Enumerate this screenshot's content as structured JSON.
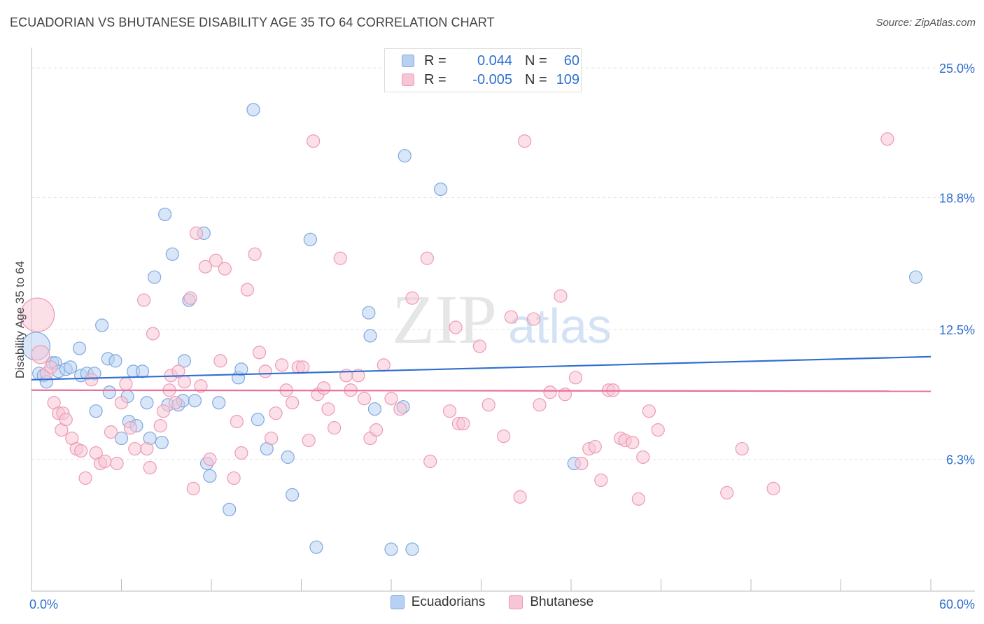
{
  "title": "ECUADORIAN VS BHUTANESE DISABILITY AGE 35 TO 64 CORRELATION CHART",
  "source": "Source: ZipAtlas.com",
  "watermark": {
    "zip": "ZIP",
    "atlas": "atlas"
  },
  "legend": {
    "rows": [
      {
        "r_label": "R =",
        "r_value": "0.044",
        "n_label": "N =",
        "n_value": "60"
      },
      {
        "r_label": "R =",
        "r_value": "-0.005",
        "n_label": "N =",
        "n_value": "109"
      }
    ]
  },
  "colors": {
    "ecuadorians_fill": "#b8d1f3",
    "ecuadorians_stroke": "#7fa8e0",
    "ecuadorians_line": "#2f6fcf",
    "bhutanese_fill": "#f7c6d5",
    "bhutanese_stroke": "#ee9ab5",
    "bhutanese_line": "#e8709a",
    "tick_label": "#2f6fcf"
  },
  "chart_data": {
    "type": "scatter",
    "title": "ECUADORIAN VS BHUTANESE DISABILITY AGE 35 TO 64 CORRELATION CHART",
    "xlabel": "",
    "ylabel": "Disability Age 35 to 64",
    "xlim": [
      0,
      60
    ],
    "ylim": [
      0,
      25
    ],
    "x_tick_labels": [
      "0.0%",
      "60.0%"
    ],
    "y_ticks": [
      6.3,
      12.5,
      18.8,
      25.0
    ],
    "y_tick_labels": [
      "6.3%",
      "12.5%",
      "18.8%",
      "25.0%"
    ],
    "grid": true,
    "legend_position": "top-center",
    "series": [
      {
        "name": "Ecuadorians",
        "trend": {
          "x": [
            0,
            60
          ],
          "y": [
            10.1,
            11.2
          ]
        },
        "points": [
          [
            0.3,
            11.7
          ],
          [
            0.5,
            10.4
          ],
          [
            0.8,
            10.3
          ],
          [
            1.0,
            10.0
          ],
          [
            1.4,
            10.9
          ],
          [
            1.6,
            10.9
          ],
          [
            1.8,
            10.5
          ],
          [
            2.3,
            10.6
          ],
          [
            2.6,
            10.7
          ],
          [
            3.2,
            11.6
          ],
          [
            3.3,
            10.3
          ],
          [
            3.7,
            10.4
          ],
          [
            4.2,
            10.4
          ],
          [
            4.3,
            8.6
          ],
          [
            4.7,
            12.7
          ],
          [
            5.1,
            11.1
          ],
          [
            5.2,
            9.5
          ],
          [
            5.6,
            11.0
          ],
          [
            6.0,
            7.3
          ],
          [
            6.4,
            9.3
          ],
          [
            6.5,
            8.1
          ],
          [
            6.8,
            10.5
          ],
          [
            7.0,
            7.9
          ],
          [
            7.4,
            10.5
          ],
          [
            7.7,
            9.0
          ],
          [
            7.9,
            7.3
          ],
          [
            8.2,
            15.0
          ],
          [
            8.7,
            7.1
          ],
          [
            8.9,
            18.0
          ],
          [
            9.1,
            8.9
          ],
          [
            9.4,
            16.1
          ],
          [
            9.8,
            8.9
          ],
          [
            10.1,
            9.1
          ],
          [
            10.2,
            11.0
          ],
          [
            10.5,
            13.9
          ],
          [
            10.9,
            9.1
          ],
          [
            11.5,
            17.1
          ],
          [
            11.7,
            6.1
          ],
          [
            11.9,
            5.5
          ],
          [
            12.5,
            9.0
          ],
          [
            13.2,
            3.9
          ],
          [
            13.8,
            10.2
          ],
          [
            14.0,
            10.6
          ],
          [
            14.8,
            23.0
          ],
          [
            15.1,
            8.2
          ],
          [
            15.7,
            6.8
          ],
          [
            17.1,
            6.4
          ],
          [
            17.4,
            4.6
          ],
          [
            18.6,
            16.8
          ],
          [
            19.0,
            2.1
          ],
          [
            22.5,
            13.3
          ],
          [
            22.6,
            12.2
          ],
          [
            22.9,
            8.7
          ],
          [
            24.0,
            2.0
          ],
          [
            24.8,
            8.8
          ],
          [
            24.9,
            20.8
          ],
          [
            25.4,
            2.0
          ],
          [
            27.3,
            19.2
          ],
          [
            36.2,
            6.1
          ],
          [
            59.0,
            15.0
          ]
        ]
      },
      {
        "name": "Bhutanese",
        "trend": {
          "x": [
            0,
            60
          ],
          "y": [
            9.6,
            9.55
          ]
        },
        "points": [
          [
            0.4,
            13.2
          ],
          [
            0.6,
            11.3
          ],
          [
            1.0,
            10.4
          ],
          [
            1.3,
            10.7
          ],
          [
            1.5,
            9.0
          ],
          [
            1.8,
            8.5
          ],
          [
            2.0,
            7.7
          ],
          [
            2.1,
            8.5
          ],
          [
            2.3,
            8.2
          ],
          [
            2.7,
            7.3
          ],
          [
            3.0,
            6.8
          ],
          [
            3.3,
            6.7
          ],
          [
            3.6,
            5.4
          ],
          [
            4.0,
            10.1
          ],
          [
            4.3,
            6.6
          ],
          [
            4.6,
            6.1
          ],
          [
            4.9,
            6.2
          ],
          [
            5.3,
            7.6
          ],
          [
            5.7,
            6.1
          ],
          [
            6.0,
            9.0
          ],
          [
            6.3,
            9.9
          ],
          [
            6.6,
            7.8
          ],
          [
            6.9,
            6.8
          ],
          [
            7.5,
            13.9
          ],
          [
            7.7,
            6.8
          ],
          [
            7.9,
            5.9
          ],
          [
            8.1,
            12.3
          ],
          [
            8.6,
            7.9
          ],
          [
            8.8,
            8.6
          ],
          [
            9.2,
            9.6
          ],
          [
            9.3,
            10.3
          ],
          [
            9.6,
            9.0
          ],
          [
            9.8,
            10.5
          ],
          [
            10.2,
            10.0
          ],
          [
            10.6,
            14.0
          ],
          [
            10.8,
            4.9
          ],
          [
            11.0,
            17.1
          ],
          [
            11.3,
            9.8
          ],
          [
            11.6,
            15.5
          ],
          [
            11.9,
            6.3
          ],
          [
            12.3,
            15.8
          ],
          [
            12.6,
            11.0
          ],
          [
            12.9,
            15.4
          ],
          [
            13.5,
            5.4
          ],
          [
            13.7,
            8.1
          ],
          [
            14.0,
            6.6
          ],
          [
            14.4,
            14.4
          ],
          [
            14.9,
            16.1
          ],
          [
            15.2,
            11.4
          ],
          [
            15.6,
            10.5
          ],
          [
            16.0,
            7.3
          ],
          [
            16.3,
            8.5
          ],
          [
            16.7,
            10.8
          ],
          [
            17.0,
            9.6
          ],
          [
            17.4,
            9.0
          ],
          [
            17.8,
            10.7
          ],
          [
            18.1,
            10.7
          ],
          [
            18.5,
            7.2
          ],
          [
            18.8,
            21.5
          ],
          [
            19.1,
            9.4
          ],
          [
            19.5,
            9.7
          ],
          [
            19.8,
            8.7
          ],
          [
            20.2,
            7.8
          ],
          [
            20.6,
            15.9
          ],
          [
            21.0,
            10.3
          ],
          [
            21.3,
            9.6
          ],
          [
            21.8,
            10.3
          ],
          [
            22.2,
            9.2
          ],
          [
            22.6,
            7.3
          ],
          [
            23.0,
            7.7
          ],
          [
            23.5,
            10.8
          ],
          [
            24.0,
            9.2
          ],
          [
            24.6,
            8.7
          ],
          [
            25.4,
            14.0
          ],
          [
            26.4,
            15.9
          ],
          [
            26.6,
            6.2
          ],
          [
            27.9,
            8.6
          ],
          [
            28.3,
            12.6
          ],
          [
            28.5,
            8.0
          ],
          [
            28.8,
            8.0
          ],
          [
            29.9,
            11.7
          ],
          [
            30.5,
            8.9
          ],
          [
            31.5,
            7.4
          ],
          [
            32.0,
            13.1
          ],
          [
            32.6,
            4.5
          ],
          [
            32.9,
            21.5
          ],
          [
            33.5,
            13.0
          ],
          [
            33.9,
            8.9
          ],
          [
            34.6,
            9.5
          ],
          [
            35.3,
            14.1
          ],
          [
            35.6,
            9.4
          ],
          [
            36.3,
            10.2
          ],
          [
            36.7,
            6.1
          ],
          [
            37.2,
            6.8
          ],
          [
            37.6,
            6.9
          ],
          [
            38.0,
            5.3
          ],
          [
            38.5,
            9.6
          ],
          [
            38.8,
            9.6
          ],
          [
            39.3,
            7.3
          ],
          [
            39.6,
            7.2
          ],
          [
            40.1,
            7.1
          ],
          [
            40.5,
            4.4
          ],
          [
            40.8,
            6.4
          ],
          [
            41.2,
            8.6
          ],
          [
            41.8,
            7.7
          ],
          [
            46.4,
            4.7
          ],
          [
            47.4,
            6.8
          ],
          [
            49.5,
            4.9
          ],
          [
            57.1,
            21.6
          ]
        ]
      }
    ]
  }
}
